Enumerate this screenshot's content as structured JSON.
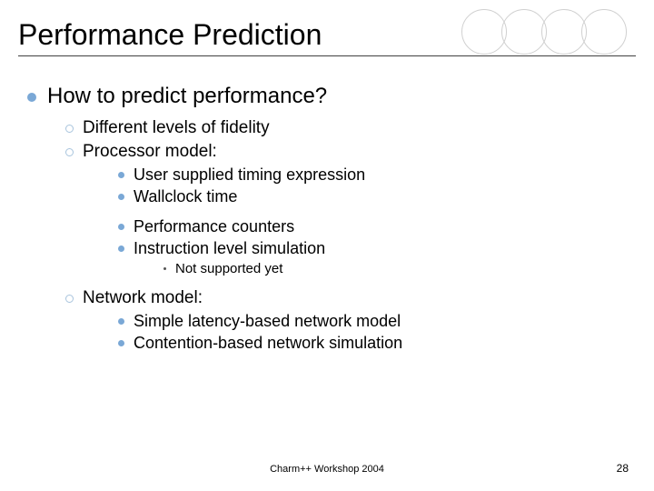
{
  "decor": {
    "circle_border_color": "#d0d0d0",
    "circle_count": 4
  },
  "title": "Performance Prediction",
  "l1": {
    "text": "How to predict performance?"
  },
  "l2a": {
    "text": "Different levels of fidelity"
  },
  "l2b": {
    "text": "Processor model:"
  },
  "l3a": {
    "text": "User supplied timing expression"
  },
  "l3b": {
    "text": "Wallclock time"
  },
  "l3c": {
    "text": "Performance counters"
  },
  "l3d": {
    "text": "Instruction level simulation"
  },
  "l4a": {
    "text": "Not supported yet"
  },
  "l2c": {
    "text": "Network model:"
  },
  "l3e": {
    "text": "Simple latency-based network model"
  },
  "l3f": {
    "text": "Contention-based network simulation"
  },
  "footer": "Charm++ Workshop 2004",
  "page_number": "28",
  "colors": {
    "bullet_primary": "#7aa8d6",
    "bullet_hollow_border": "#a8c4dd",
    "text": "#000000",
    "background": "#ffffff",
    "underline": "#404040"
  },
  "typography": {
    "title_fontsize": 32,
    "l1_fontsize": 24,
    "l2_fontsize": 19,
    "l3_fontsize": 18,
    "l4_fontsize": 15,
    "footer_fontsize": 11,
    "font_family": "Arial"
  }
}
